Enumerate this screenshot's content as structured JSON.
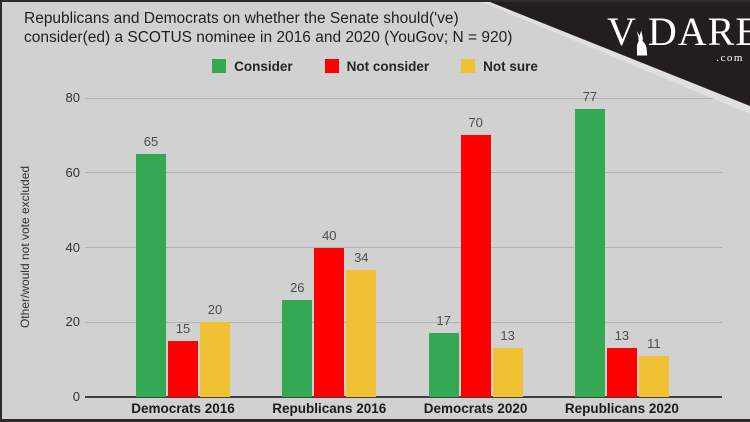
{
  "header": {
    "title_line1": "Republicans and Democrats on whether the Senate should('ve)",
    "title_line2": "consider(ed) a SCOTUS nominee in 2016 and 2020 (YouGov; N = 920)"
  },
  "logo": {
    "brand_v": "V",
    "brand_rest": "DARE",
    "tld": ".com",
    "deer_icon": "white-doe-silhouette"
  },
  "colors": {
    "background": "#d1d1d1",
    "corner_black": "#221e1f",
    "consider_green": "#34a853",
    "not_consider_red": "#ff0000",
    "not_sure_yellow": "#f0c132",
    "gridline": "#b2b2b2",
    "axis_line": "#404040",
    "title_text": "#1f1f1f"
  },
  "chart_data": {
    "type": "bar",
    "title": "Republicans and Democrats on whether the Senate should('ve) consider(ed) a SCOTUS nominee in 2016 and 2020 (YouGov; N = 920)",
    "categories": [
      "Democrats 2016",
      "Republicans 2016",
      "Democrats 2020",
      "Republicans 2020"
    ],
    "series": [
      {
        "name": "Consider",
        "color": "#34a853",
        "values": [
          65,
          26,
          17,
          77
        ]
      },
      {
        "name": "Not consider",
        "color": "#ff0000",
        "values": [
          15,
          40,
          70,
          13
        ]
      },
      {
        "name": "Not sure",
        "color": "#f0c132",
        "values": [
          20,
          34,
          13,
          11
        ]
      }
    ],
    "xlabel": "",
    "ylabel": "Other/would not vote excluded",
    "yticks": [
      0,
      20,
      40,
      60,
      80
    ],
    "ylim": [
      0,
      80
    ],
    "grid": true,
    "legend_position": "top"
  }
}
